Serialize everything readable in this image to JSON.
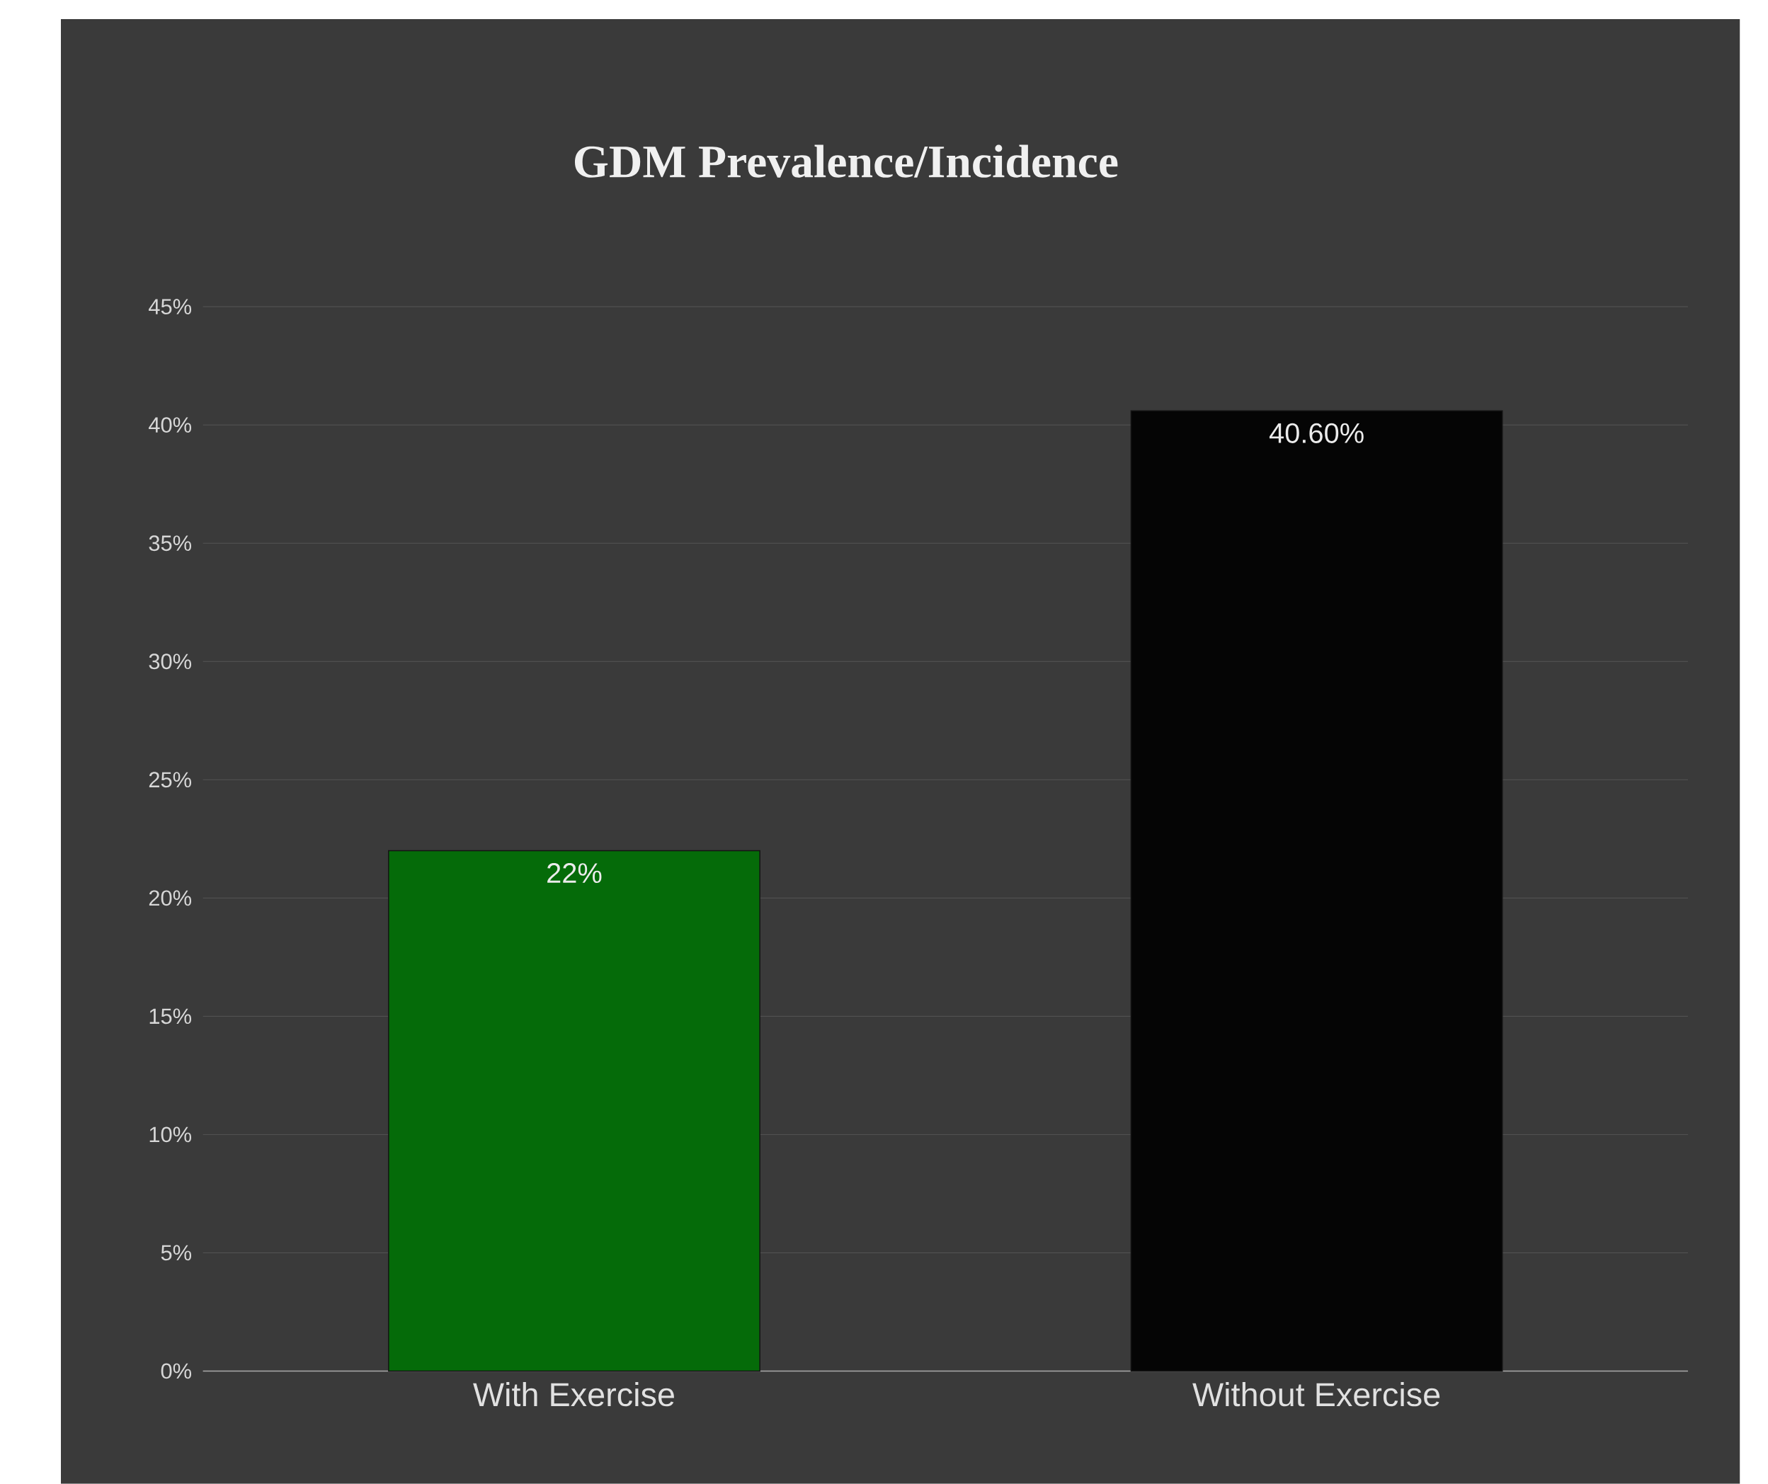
{
  "chart_data": {
    "type": "bar",
    "title": "GDM Prevalence/Incidence",
    "categories": [
      "With Exercise",
      "Without Exercise"
    ],
    "values": [
      22,
      40.6
    ],
    "colors": [
      "#056b09",
      "#050505"
    ],
    "value_labels": [
      "22%",
      "40.60%"
    ],
    "ylim": [
      0,
      45
    ],
    "yticks": [
      {
        "value": 0,
        "label": "0%"
      },
      {
        "value": 5,
        "label": "5%"
      },
      {
        "value": 10,
        "label": "10%"
      },
      {
        "value": 15,
        "label": "15%"
      },
      {
        "value": 20,
        "label": "20%"
      },
      {
        "value": 25,
        "label": "25%"
      },
      {
        "value": 30,
        "label": "30%"
      },
      {
        "value": 35,
        "label": "35%"
      },
      {
        "value": 40,
        "label": "40%"
      },
      {
        "value": 45,
        "label": "45%"
      }
    ],
    "grid": "y"
  }
}
